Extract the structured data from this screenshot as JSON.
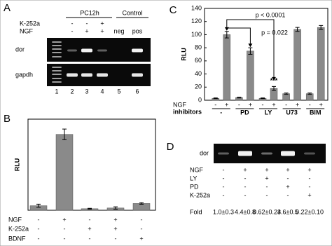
{
  "panel_a": {
    "label": "A",
    "group_labels": [
      "PC12h",
      "Control"
    ],
    "rows": [
      {
        "name": "K-252a",
        "signs": [
          "-",
          "-",
          "+"
        ]
      },
      {
        "name": "NGF",
        "signs": [
          "-",
          "+",
          "+"
        ]
      }
    ],
    "control_labels": [
      "neg",
      "pos"
    ],
    "gel_labels": [
      "dor",
      "gapdh"
    ],
    "lanes": [
      "1",
      "2",
      "3",
      "4",
      "5",
      "6"
    ]
  },
  "chart_data": [
    {
      "type": "bar",
      "panel_label": "B",
      "ylabel": "RLU",
      "values": [
        6,
        100,
        2,
        3,
        9
      ],
      "errors": [
        2,
        7,
        0.5,
        1.5,
        1
      ],
      "ylim": [
        0,
        120
      ],
      "color": "#8a8a8a",
      "conditions": [
        {
          "name": "NGF",
          "signs": [
            "-",
            "+",
            "-",
            "+",
            "-"
          ]
        },
        {
          "name": "K-252a",
          "signs": [
            "-",
            "-",
            "+",
            "+",
            "-"
          ]
        },
        {
          "name": "BDNF",
          "signs": [
            "-",
            "-",
            "-",
            "-",
            "+"
          ]
        }
      ]
    },
    {
      "type": "bar",
      "panel_label": "C",
      "ylabel": "RLU",
      "values": [
        3,
        100,
        4,
        75,
        3,
        18,
        10,
        108,
        10,
        111
      ],
      "errors": [
        0.5,
        5,
        0.5,
        5,
        0.5,
        3,
        1,
        3,
        1,
        3
      ],
      "ylim": [
        0,
        140
      ],
      "yticks": [
        0,
        20,
        40,
        60,
        80,
        100,
        120,
        140
      ],
      "color": "#8a8a8a",
      "conditions": [
        {
          "name": "NGF",
          "signs": [
            "-",
            "+",
            "-",
            "+",
            "-",
            "+",
            "-",
            "+",
            "-",
            "+"
          ]
        }
      ],
      "groups_name": "inhibitors",
      "groups": [
        "-",
        "PD",
        "LY",
        "U73",
        "BIM"
      ],
      "annotations": [
        "p < 0.0001",
        "p = 0.022",
        "***"
      ]
    }
  ],
  "panel_d": {
    "label": "D",
    "gel_label": "dor",
    "rows": [
      {
        "name": "NGF",
        "signs": [
          "-",
          "+",
          "+",
          "+",
          "+"
        ]
      },
      {
        "name": "LY",
        "signs": [
          "-",
          "-",
          "+",
          "-",
          "-"
        ]
      },
      {
        "name": "PD",
        "signs": [
          "-",
          "-",
          "-",
          "+",
          "-"
        ]
      },
      {
        "name": "K-252a",
        "signs": [
          "-",
          "-",
          "-",
          "-",
          "+"
        ]
      }
    ],
    "fold_label": "Fold",
    "fold": [
      "1.0±0.3",
      "4.4±0.8",
      "0.62±0.24",
      "3.6±0.5",
      "0.22±0.10"
    ]
  }
}
